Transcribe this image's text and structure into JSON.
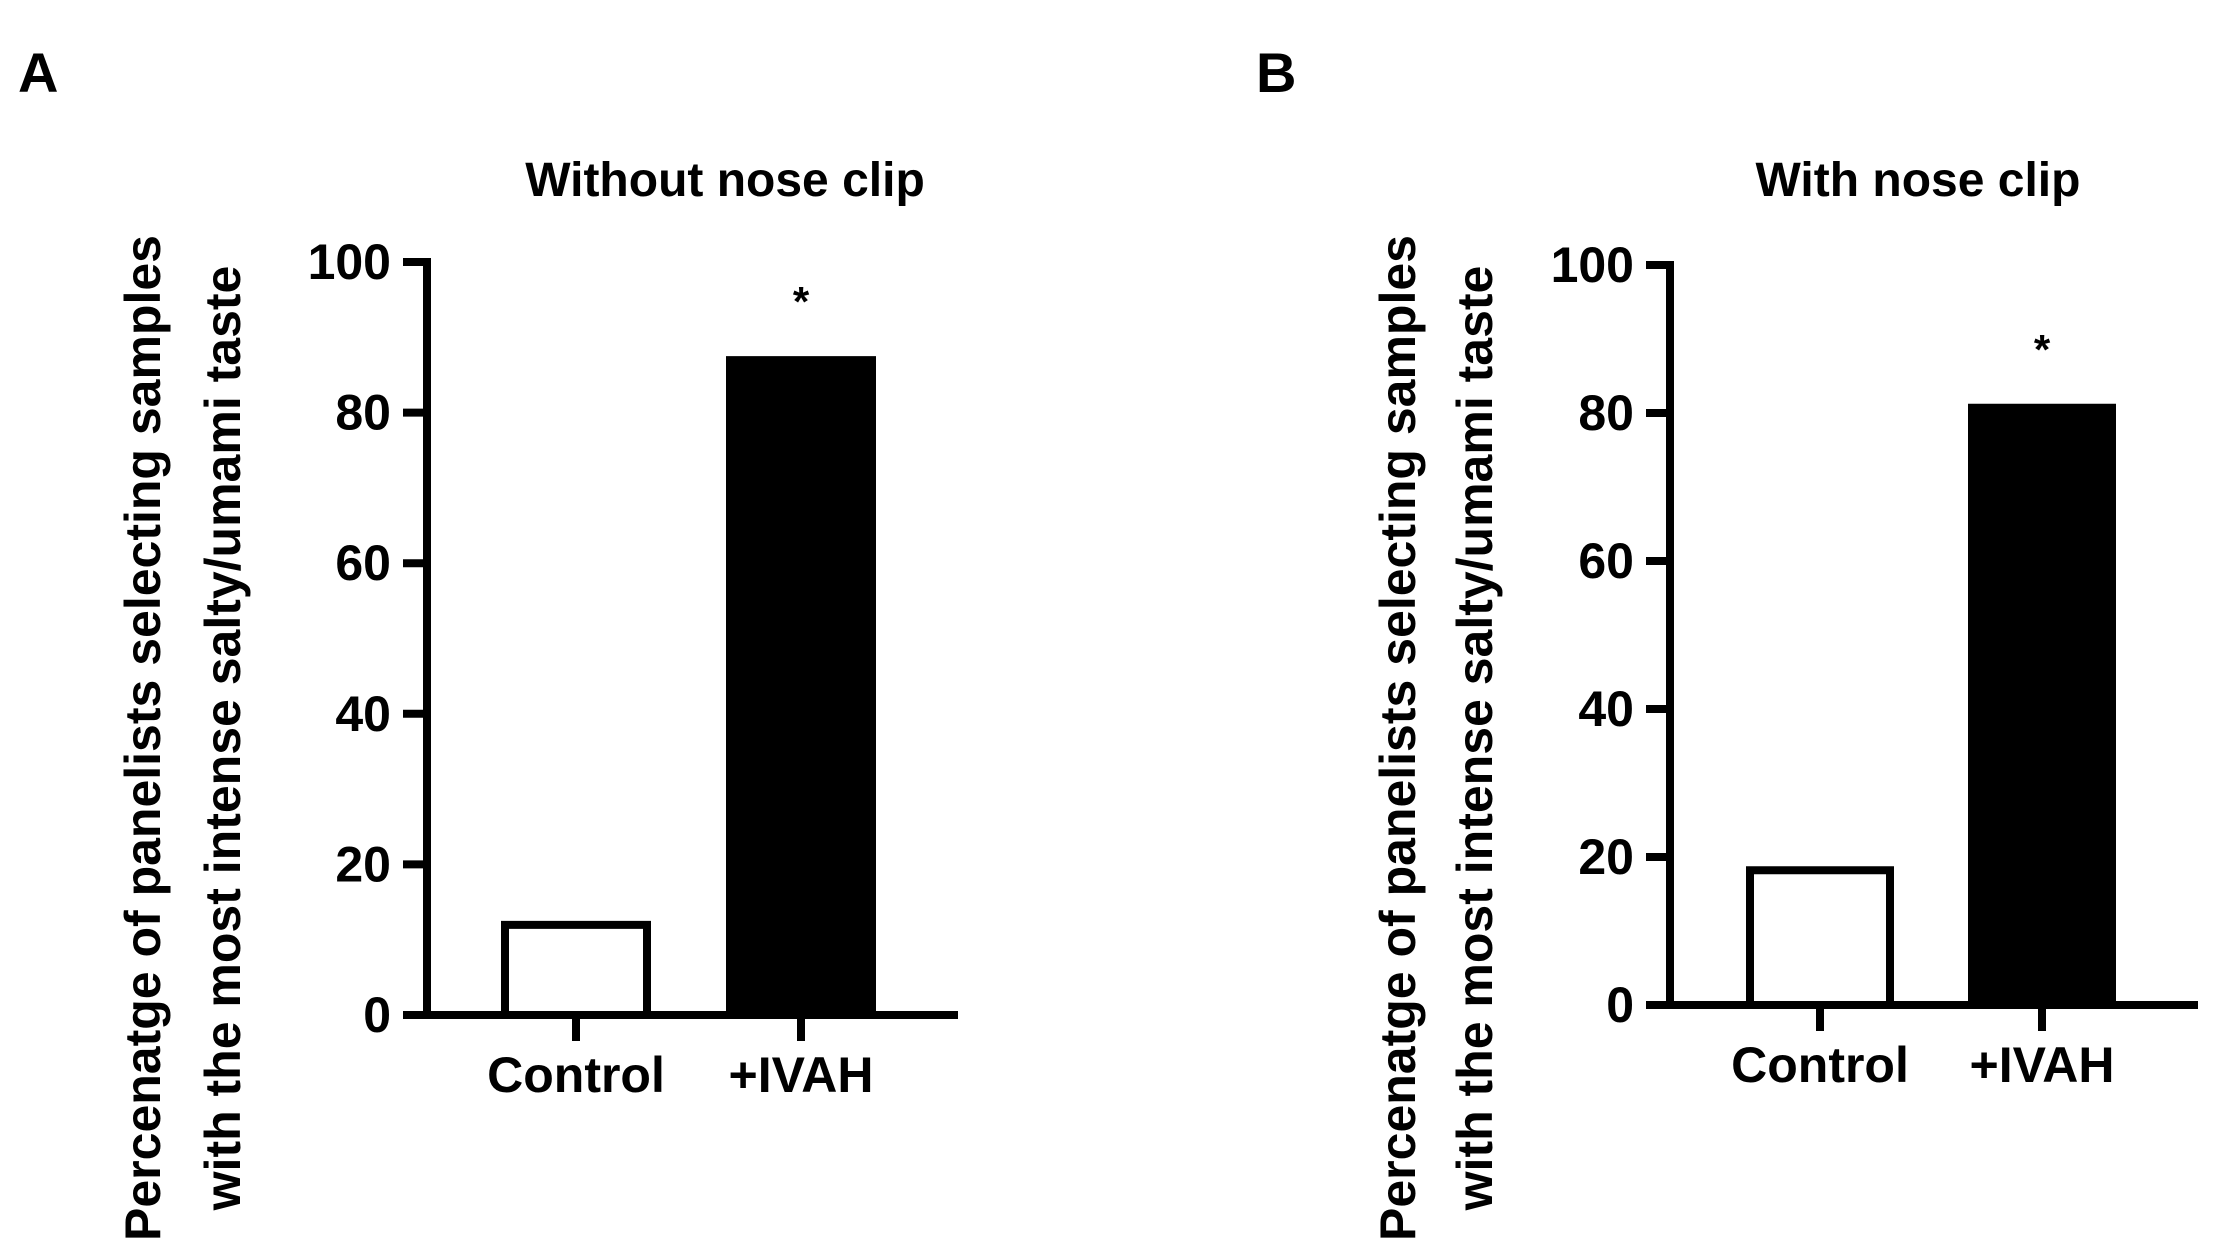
{
  "chart_data": [
    {
      "panel_label": "A",
      "type": "bar",
      "title": "Without nose clip",
      "ylabel_lines": [
        "Percenatge of panelists selecting samples",
        "with the most intense salty/umami taste"
      ],
      "categories": [
        "Control",
        "+IVAH"
      ],
      "values": [
        12.5,
        87.5
      ],
      "bar_fill": [
        "#ffffff",
        "#000000"
      ],
      "annotations": [
        "",
        "*"
      ],
      "ylim": [
        0,
        100
      ],
      "yticks": [
        0,
        20,
        40,
        60,
        80,
        100
      ],
      "grid": false,
      "legend": "none"
    },
    {
      "panel_label": "B",
      "type": "bar",
      "title": "With nose clip",
      "ylabel_lines": [
        "Percenatge of panelists selecting samples",
        "with the most intense salty/umami taste"
      ],
      "categories": [
        "Control",
        "+IVAH"
      ],
      "values": [
        18.75,
        81.25
      ],
      "bar_fill": [
        "#ffffff",
        "#000000"
      ],
      "annotations": [
        "",
        "*"
      ],
      "ylim": [
        0,
        100
      ],
      "yticks": [
        0,
        20,
        40,
        60,
        80,
        100
      ],
      "grid": false,
      "legend": "none"
    }
  ]
}
